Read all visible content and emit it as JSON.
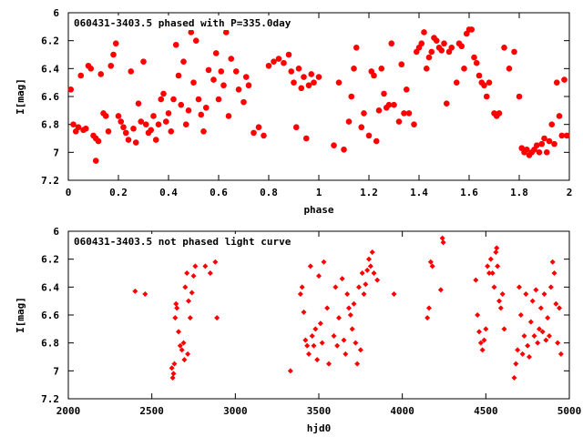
{
  "chart_data": [
    {
      "type": "scatter",
      "title": "060431-3403.5 phased with P=335.0day",
      "xlabel": "phase",
      "ylabel": "I[mag]",
      "xlim": [
        0,
        2
      ],
      "ylim": [
        7.2,
        6.0
      ],
      "y_inverted": true,
      "xticks": [
        "0",
        "0.2",
        "0.4",
        "0.6",
        "0.8",
        "1",
        "1.2",
        "1.4",
        "1.6",
        "1.8",
        "2"
      ],
      "xtick_values": [
        0,
        0.2,
        0.4,
        0.6,
        0.8,
        1.0,
        1.2,
        1.4,
        1.6,
        1.8,
        2.0
      ],
      "yticks": [
        "6",
        "6.2",
        "6.4",
        "6.6",
        "6.8",
        "7",
        "7.2"
      ],
      "ytick_values": [
        6.0,
        6.2,
        6.4,
        6.6,
        6.8,
        7.0,
        7.2
      ],
      "marker": "filled-circle",
      "color": "#ff0000",
      "points": [
        [
          0.01,
          6.55
        ],
        [
          0.02,
          6.8
        ],
        [
          0.03,
          6.85
        ],
        [
          0.04,
          6.82
        ],
        [
          0.05,
          6.45
        ],
        [
          0.06,
          6.84
        ],
        [
          0.07,
          6.83
        ],
        [
          0.08,
          6.38
        ],
        [
          0.09,
          6.4
        ],
        [
          0.1,
          6.88
        ],
        [
          0.11,
          6.9
        ],
        [
          0.11,
          7.06
        ],
        [
          0.12,
          6.92
        ],
        [
          0.13,
          6.44
        ],
        [
          0.14,
          6.72
        ],
        [
          0.15,
          6.74
        ],
        [
          0.16,
          6.85
        ],
        [
          0.17,
          6.38
        ],
        [
          0.18,
          6.3
        ],
        [
          0.19,
          6.22
        ],
        [
          0.2,
          6.74
        ],
        [
          0.21,
          6.78
        ],
        [
          0.22,
          6.82
        ],
        [
          0.23,
          6.86
        ],
        [
          0.24,
          6.91
        ],
        [
          0.25,
          6.42
        ],
        [
          0.26,
          6.83
        ],
        [
          0.27,
          6.93
        ],
        [
          0.28,
          6.65
        ],
        [
          0.29,
          6.78
        ],
        [
          0.3,
          6.35
        ],
        [
          0.31,
          6.8
        ],
        [
          0.32,
          6.86
        ],
        [
          0.33,
          6.84
        ],
        [
          0.34,
          6.74
        ],
        [
          0.35,
          6.91
        ],
        [
          0.36,
          6.8
        ],
        [
          0.37,
          6.62
        ],
        [
          0.38,
          6.58
        ],
        [
          0.39,
          6.78
        ],
        [
          0.4,
          6.72
        ],
        [
          0.41,
          6.85
        ],
        [
          0.42,
          6.62
        ],
        [
          0.43,
          6.23
        ],
        [
          0.44,
          6.45
        ],
        [
          0.45,
          6.66
        ],
        [
          0.46,
          6.35
        ],
        [
          0.47,
          6.8
        ],
        [
          0.48,
          6.7
        ],
        [
          0.49,
          6.14
        ],
        [
          0.5,
          6.5
        ],
        [
          0.51,
          6.2
        ],
        [
          0.52,
          6.62
        ],
        [
          0.53,
          6.73
        ],
        [
          0.54,
          6.85
        ],
        [
          0.55,
          6.68
        ],
        [
          0.56,
          6.41
        ],
        [
          0.58,
          6.48
        ],
        [
          0.59,
          6.29
        ],
        [
          0.6,
          6.62
        ],
        [
          0.61,
          6.42
        ],
        [
          0.62,
          6.52
        ],
        [
          0.63,
          6.14
        ],
        [
          0.64,
          6.74
        ],
        [
          0.65,
          6.33
        ],
        [
          0.66,
          6.06
        ],
        [
          0.67,
          6.42
        ],
        [
          0.68,
          6.55
        ],
        [
          0.7,
          6.64
        ],
        [
          0.71,
          6.46
        ],
        [
          0.72,
          6.52
        ],
        [
          0.74,
          6.86
        ],
        [
          0.76,
          6.82
        ],
        [
          0.78,
          6.88
        ],
        [
          0.8,
          6.38
        ],
        [
          0.82,
          6.35
        ],
        [
          0.84,
          6.33
        ],
        [
          0.86,
          6.36
        ],
        [
          0.88,
          6.3
        ],
        [
          0.89,
          6.42
        ],
        [
          0.9,
          6.5
        ],
        [
          0.91,
          6.82
        ],
        [
          0.92,
          6.4
        ],
        [
          0.93,
          6.54
        ],
        [
          0.94,
          6.46
        ],
        [
          0.95,
          6.9
        ],
        [
          0.96,
          6.52
        ],
        [
          0.97,
          6.44
        ],
        [
          0.98,
          6.5
        ],
        [
          1.0,
          6.46
        ],
        [
          1.06,
          6.95
        ],
        [
          1.08,
          6.5
        ],
        [
          1.1,
          6.98
        ],
        [
          1.12,
          6.78
        ],
        [
          1.13,
          6.6
        ],
        [
          1.14,
          6.4
        ],
        [
          1.15,
          6.25
        ],
        [
          1.17,
          6.82
        ],
        [
          1.18,
          6.72
        ],
        [
          1.2,
          6.88
        ],
        [
          1.21,
          6.42
        ],
        [
          1.22,
          6.45
        ],
        [
          1.23,
          6.92
        ],
        [
          1.24,
          6.7
        ],
        [
          1.25,
          6.4
        ],
        [
          1.26,
          6.58
        ],
        [
          1.27,
          6.68
        ],
        [
          1.28,
          6.66
        ],
        [
          1.29,
          6.22
        ],
        [
          1.3,
          6.66
        ],
        [
          1.32,
          6.78
        ],
        [
          1.33,
          6.37
        ],
        [
          1.34,
          6.72
        ],
        [
          1.35,
          6.55
        ],
        [
          1.36,
          6.72
        ],
        [
          1.38,
          6.8
        ],
        [
          1.39,
          6.28
        ],
        [
          1.4,
          6.25
        ],
        [
          1.41,
          6.22
        ],
        [
          1.42,
          6.14
        ],
        [
          1.43,
          6.4
        ],
        [
          1.44,
          6.32
        ],
        [
          1.45,
          6.28
        ],
        [
          1.46,
          6.18
        ],
        [
          1.47,
          6.2
        ],
        [
          1.48,
          6.25
        ],
        [
          1.49,
          6.27
        ],
        [
          1.5,
          6.22
        ],
        [
          1.51,
          6.65
        ],
        [
          1.52,
          6.28
        ],
        [
          1.53,
          6.25
        ],
        [
          1.55,
          6.5
        ],
        [
          1.56,
          6.22
        ],
        [
          1.57,
          6.24
        ],
        [
          1.58,
          6.4
        ],
        [
          1.59,
          6.15
        ],
        [
          1.6,
          6.12
        ],
        [
          1.61,
          6.12
        ],
        [
          1.62,
          6.32
        ],
        [
          1.63,
          6.36
        ],
        [
          1.64,
          6.45
        ],
        [
          1.65,
          6.5
        ],
        [
          1.66,
          6.52
        ],
        [
          1.67,
          6.6
        ],
        [
          1.68,
          6.5
        ],
        [
          1.7,
          6.72
        ],
        [
          1.71,
          6.74
        ],
        [
          1.72,
          6.72
        ],
        [
          1.74,
          6.25
        ],
        [
          1.76,
          6.4
        ],
        [
          1.78,
          6.28
        ],
        [
          1.8,
          6.6
        ],
        [
          1.81,
          6.97
        ],
        [
          1.82,
          7.0
        ],
        [
          1.83,
          6.98
        ],
        [
          1.84,
          7.02
        ],
        [
          1.85,
          7.0
        ],
        [
          1.86,
          6.98
        ],
        [
          1.87,
          6.95
        ],
        [
          1.88,
          7.0
        ],
        [
          1.89,
          6.94
        ],
        [
          1.9,
          6.9
        ],
        [
          1.91,
          7.0
        ],
        [
          1.92,
          6.92
        ],
        [
          1.93,
          6.8
        ],
        [
          1.94,
          6.94
        ],
        [
          1.95,
          6.5
        ],
        [
          1.96,
          6.74
        ],
        [
          1.97,
          6.88
        ],
        [
          1.98,
          6.48
        ],
        [
          1.99,
          6.88
        ]
      ]
    },
    {
      "type": "scatter",
      "title": "060431-3403.5 not phased light curve",
      "xlabel": "hjd0",
      "ylabel": "I[mag]",
      "xlim": [
        2000,
        5000
      ],
      "ylim": [
        7.2,
        6.0
      ],
      "y_inverted": true,
      "xticks": [
        "2000",
        "2500",
        "3000",
        "3500",
        "4000",
        "4500",
        "5000"
      ],
      "xtick_values": [
        2000,
        2500,
        3000,
        3500,
        4000,
        4500,
        5000
      ],
      "yticks": [
        "6",
        "6.2",
        "6.4",
        "6.6",
        "6.8",
        "7",
        "7.2"
      ],
      "ytick_values": [
        6.0,
        6.2,
        6.4,
        6.6,
        6.8,
        7.0,
        7.2
      ],
      "marker": "filled-diamond",
      "color": "#ff0000",
      "points": [
        [
          2400,
          6.43
        ],
        [
          2460,
          6.45
        ],
        [
          2620,
          6.98
        ],
        [
          2625,
          7.05
        ],
        [
          2630,
          7.02
        ],
        [
          2635,
          6.95
        ],
        [
          2640,
          6.62
        ],
        [
          2645,
          6.52
        ],
        [
          2650,
          6.55
        ],
        [
          2660,
          6.72
        ],
        [
          2670,
          6.82
        ],
        [
          2680,
          6.85
        ],
        [
          2690,
          6.8
        ],
        [
          2695,
          6.92
        ],
        [
          2700,
          6.4
        ],
        [
          2710,
          6.3
        ],
        [
          2715,
          6.88
        ],
        [
          2720,
          6.5
        ],
        [
          2730,
          6.62
        ],
        [
          2740,
          6.44
        ],
        [
          2750,
          6.32
        ],
        [
          2760,
          6.25
        ],
        [
          2820,
          6.25
        ],
        [
          2850,
          6.3
        ],
        [
          2880,
          6.22
        ],
        [
          2890,
          6.62
        ],
        [
          3330,
          7.0
        ],
        [
          3390,
          6.45
        ],
        [
          3400,
          6.4
        ],
        [
          3410,
          6.58
        ],
        [
          3420,
          6.78
        ],
        [
          3430,
          6.82
        ],
        [
          3440,
          6.88
        ],
        [
          3450,
          6.25
        ],
        [
          3460,
          6.75
        ],
        [
          3470,
          6.82
        ],
        [
          3480,
          6.7
        ],
        [
          3490,
          6.92
        ],
        [
          3500,
          6.32
        ],
        [
          3510,
          6.66
        ],
        [
          3520,
          6.8
        ],
        [
          3530,
          6.22
        ],
        [
          3550,
          6.55
        ],
        [
          3560,
          6.95
        ],
        [
          3590,
          6.75
        ],
        [
          3600,
          6.4
        ],
        [
          3610,
          6.82
        ],
        [
          3620,
          6.62
        ],
        [
          3640,
          6.34
        ],
        [
          3650,
          6.78
        ],
        [
          3660,
          6.88
        ],
        [
          3670,
          6.45
        ],
        [
          3680,
          6.55
        ],
        [
          3690,
          6.6
        ],
        [
          3700,
          6.7
        ],
        [
          3710,
          6.52
        ],
        [
          3720,
          6.8
        ],
        [
          3730,
          6.95
        ],
        [
          3740,
          6.4
        ],
        [
          3750,
          6.85
        ],
        [
          3760,
          6.3
        ],
        [
          3770,
          6.45
        ],
        [
          3780,
          6.38
        ],
        [
          3790,
          6.28
        ],
        [
          3800,
          6.2
        ],
        [
          3810,
          6.25
        ],
        [
          3820,
          6.15
        ],
        [
          3830,
          6.3
        ],
        [
          3850,
          6.35
        ],
        [
          3950,
          6.45
        ],
        [
          4150,
          6.62
        ],
        [
          4160,
          6.55
        ],
        [
          4170,
          6.22
        ],
        [
          4180,
          6.25
        ],
        [
          4230,
          6.42
        ],
        [
          4240,
          6.05
        ],
        [
          4245,
          6.08
        ],
        [
          4440,
          6.35
        ],
        [
          4450,
          6.6
        ],
        [
          4460,
          6.72
        ],
        [
          4470,
          6.8
        ],
        [
          4480,
          6.85
        ],
        [
          4490,
          6.78
        ],
        [
          4500,
          6.7
        ],
        [
          4510,
          6.25
        ],
        [
          4520,
          6.3
        ],
        [
          4530,
          6.2
        ],
        [
          4540,
          6.3
        ],
        [
          4550,
          6.4
        ],
        [
          4560,
          6.15
        ],
        [
          4565,
          6.12
        ],
        [
          4570,
          6.25
        ],
        [
          4580,
          6.5
        ],
        [
          4590,
          6.55
        ],
        [
          4600,
          6.45
        ],
        [
          4610,
          6.7
        ],
        [
          4670,
          7.05
        ],
        [
          4680,
          6.95
        ],
        [
          4690,
          6.85
        ],
        [
          4700,
          6.4
        ],
        [
          4710,
          6.6
        ],
        [
          4720,
          6.88
        ],
        [
          4730,
          6.75
        ],
        [
          4740,
          6.45
        ],
        [
          4750,
          6.82
        ],
        [
          4760,
          6.9
        ],
        [
          4770,
          6.65
        ],
        [
          4780,
          6.5
        ],
        [
          4790,
          6.75
        ],
        [
          4800,
          6.42
        ],
        [
          4810,
          6.8
        ],
        [
          4820,
          6.7
        ],
        [
          4830,
          6.55
        ],
        [
          4840,
          6.72
        ],
        [
          4850,
          6.45
        ],
        [
          4860,
          6.78
        ],
        [
          4870,
          6.62
        ],
        [
          4880,
          6.75
        ],
        [
          4890,
          6.4
        ],
        [
          4900,
          6.22
        ],
        [
          4910,
          6.3
        ],
        [
          4920,
          6.52
        ],
        [
          4930,
          6.8
        ],
        [
          4940,
          6.55
        ],
        [
          4950,
          6.88
        ]
      ]
    }
  ]
}
